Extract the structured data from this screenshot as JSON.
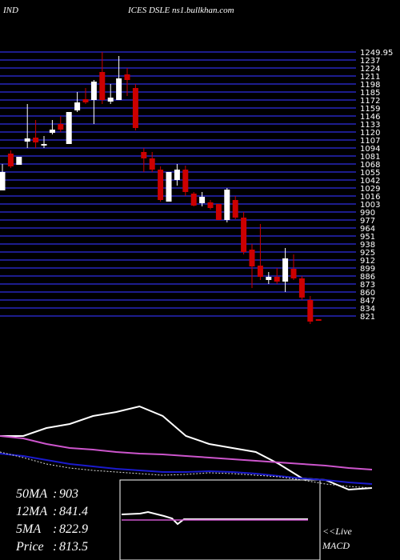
{
  "chart_data": {
    "type": "candlestick",
    "title_left": "IND",
    "title_right": "ICES DSLE ns1.bullkhan.com",
    "ylim": [
      808,
      1250
    ],
    "yticks": [
      1249.95,
      1237,
      1224,
      1211,
      1198,
      1185,
      1172,
      1159,
      1146,
      1133,
      1120,
      1107,
      1094,
      1081,
      1068,
      1055,
      1042,
      1029,
      1016,
      1003,
      990,
      977,
      964,
      951,
      938,
      925,
      912,
      899,
      886,
      873,
      860,
      847,
      834,
      821
    ],
    "grid_color": "#1c1c8c",
    "up_color": "#ffffff",
    "down_color": "#cc0000",
    "open": [
      1025.1,
      1084.9,
      1066.7,
      1104.4,
      1110.9,
      1097.9,
      1118.7,
      1133,
      1100.5,
      1155.1,
      1173.3,
      1172,
      1217.5,
      1169.4,
      1172,
      1213.6,
      1191.5,
      1087.5,
      1077.1,
      1058.9,
      1006.9,
      1042,
      1058.9,
      1019.9,
      1004.3,
      1005.6,
      1003,
      977,
      1009.5,
      980.9,
      928.9,
      902.9,
      879.5,
      884.7,
      876.9,
      897.7,
      882.1,
      847,
      815.8
    ],
    "close": [
      1055,
      1064.1,
      1079.7,
      1109.6,
      1103.1,
      1100.5,
      1123.9,
      1123.9,
      1152.5,
      1168.1,
      1168.1,
      1201.9,
      1172,
      1175.9,
      1207.1,
      1204.5,
      1126.5,
      1077.1,
      1058.9,
      1009.5,
      1055,
      1058.9,
      1022.5,
      1000.4,
      1014.7,
      996.5,
      977,
      1026.4,
      980.9,
      925,
      901.6,
      884.7,
      884.7,
      876.9,
      914.6,
      882.1,
      850.9,
      811.9,
      813.2
    ],
    "high": [
      1068,
      1090.1,
      1079.7,
      1165.5,
      1139.5,
      1113.5,
      1139.5,
      1146,
      1152.5,
      1185,
      1191.5,
      1204.5,
      1250,
      1198,
      1243.5,
      1224,
      1198,
      1094,
      1087.5,
      1064.1,
      1055,
      1068,
      1065.4,
      1022.5,
      1022.5,
      1009.5,
      1003,
      1029,
      1016,
      990,
      938,
      970.5,
      892.5,
      899,
      931.5,
      921.1,
      886,
      853.5,
      815.8
    ],
    "low": [
      1025.1,
      1061.5,
      1066.7,
      1094,
      1094,
      1094,
      1116.1,
      1120,
      1100.5,
      1152.5,
      1165.5,
      1133,
      1165.5,
      1165.5,
      1172,
      1178.5,
      1122.6,
      1055,
      1055,
      1006.9,
      1006.9,
      1032.9,
      1016,
      999.1,
      999.1,
      993.9,
      977,
      973.1,
      978.3,
      921.1,
      866.5,
      879.5,
      873,
      873,
      860,
      879.5,
      847,
      808,
      813.2
    ],
    "panel": {
      "ylim": [
        0,
        100
      ],
      "series": [
        {
          "name": "Price",
          "color": "#ffffff",
          "values": [
            60,
            60,
            68,
            72,
            80,
            84,
            89.6,
            80,
            60,
            52,
            48,
            44,
            32,
            17.6,
            16,
            6.4,
            8
          ]
        },
        {
          "name": "50MA",
          "color": "#cc55cc",
          "values": [
            60,
            57.6,
            52,
            48,
            46.4,
            44,
            42.4,
            41.6,
            40,
            38.4,
            36.8,
            35.2,
            33.6,
            32,
            30.4,
            28,
            26.4
          ]
        },
        {
          "name": "12MA",
          "color": "#1a1acc",
          "values": [
            42.4,
            40,
            36,
            32,
            29.6,
            27.2,
            25.6,
            24,
            24,
            24.8,
            24,
            22.4,
            20,
            17.6,
            16,
            13.6,
            12
          ]
        },
        {
          "name": "5MA",
          "color": "#dddddd",
          "dashed": true,
          "values": [
            44,
            38.4,
            32,
            28,
            25.6,
            24,
            22.4,
            20.8,
            21.6,
            23.2,
            22.4,
            20.8,
            19.2,
            16,
            12,
            9.6,
            8
          ]
        }
      ]
    },
    "legend": [
      {
        "label": "50MA",
        "value": 903
      },
      {
        "label": "12MA",
        "value": 841.4
      },
      {
        "label": "5MA",
        "value": 822.9
      },
      {
        "label": "Price  ",
        "value": 813.5
      }
    ],
    "live_label": "<<Live",
    "macd_label": "MACD"
  }
}
